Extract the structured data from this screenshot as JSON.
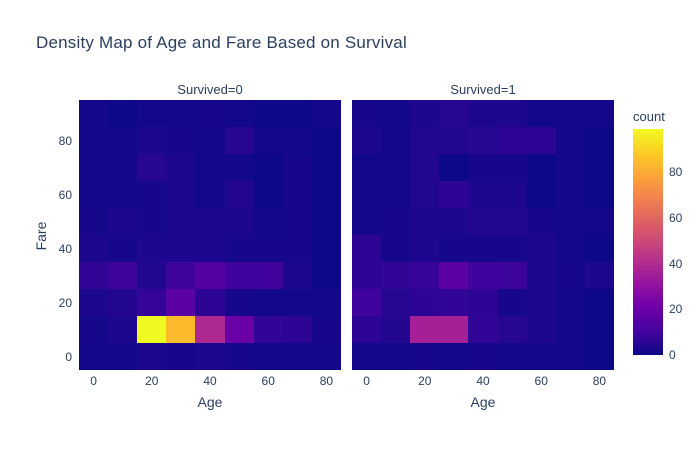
{
  "chart_data": {
    "type": "heatmap",
    "title": "Density Map of Age and Fare Based on Survival",
    "x": {
      "label": "Age",
      "bin_centers": [
        0,
        10,
        20,
        30,
        40,
        50,
        60,
        70,
        80
      ],
      "bin_size": 10,
      "range": [
        -5,
        85
      ],
      "ticks": [
        0,
        20,
        40,
        60,
        80
      ]
    },
    "y": {
      "label": "Fare",
      "bin_centers": [
        0,
        10,
        20,
        30,
        40,
        50,
        60,
        70,
        80,
        90
      ],
      "bin_size": 10,
      "range": [
        -5,
        95
      ],
      "ticks": [
        0,
        20,
        40,
        60,
        80
      ]
    },
    "legend_position": "right",
    "grid": "off",
    "colorbar": {
      "title": "count",
      "min": 0,
      "max": 99,
      "ticks": [
        0,
        20,
        40,
        60,
        80
      ],
      "colorscale_name": "plasma",
      "colorscale": [
        [
          0.0,
          "#0d0887"
        ],
        [
          0.1111,
          "#46039f"
        ],
        [
          0.2222,
          "#7201a8"
        ],
        [
          0.3333,
          "#9c179e"
        ],
        [
          0.4444,
          "#bd3786"
        ],
        [
          0.5556,
          "#d8576b"
        ],
        [
          0.6667,
          "#ed7953"
        ],
        [
          0.7778,
          "#fb9f3a"
        ],
        [
          0.8889,
          "#fdca26"
        ],
        [
          1.0,
          "#f0f921"
        ]
      ]
    },
    "facets": [
      {
        "title": "Survived=0",
        "counts_rows_fare_0_to_90": [
          [
            1,
            1,
            3,
            2,
            3,
            2,
            1,
            1,
            1
          ],
          [
            2,
            3,
            99,
            84,
            39,
            20,
            7,
            6,
            2
          ],
          [
            3,
            4,
            8,
            16,
            6,
            2,
            1,
            1,
            1
          ],
          [
            7,
            9,
            4,
            9,
            14,
            10,
            10,
            3,
            0
          ],
          [
            3,
            2,
            3,
            3,
            3,
            2,
            2,
            2,
            0
          ],
          [
            2,
            3,
            2,
            3,
            3,
            3,
            1,
            2,
            0
          ],
          [
            1,
            1,
            2,
            3,
            1,
            4,
            0,
            2,
            0
          ],
          [
            1,
            1,
            5,
            3,
            1,
            1,
            0,
            2,
            0
          ],
          [
            1,
            1,
            3,
            2,
            1,
            5,
            1,
            1,
            0
          ],
          [
            1,
            0,
            1,
            1,
            2,
            1,
            0,
            0,
            1
          ]
        ]
      },
      {
        "title": "Survived=1",
        "counts_rows_fare_0_to_90": [
          [
            1,
            1,
            2,
            1,
            2,
            1,
            1,
            1,
            0
          ],
          [
            6,
            4,
            36,
            36,
            7,
            5,
            3,
            1,
            0
          ],
          [
            10,
            5,
            6,
            7,
            6,
            2,
            3,
            1,
            0
          ],
          [
            6,
            7,
            8,
            16,
            10,
            9,
            3,
            2,
            3
          ],
          [
            6,
            2,
            3,
            2,
            2,
            2,
            3,
            1,
            0
          ],
          [
            1,
            2,
            3,
            3,
            4,
            4,
            2,
            1,
            1
          ],
          [
            1,
            1,
            4,
            6,
            3,
            3,
            0,
            1,
            0
          ],
          [
            1,
            1,
            4,
            0,
            2,
            2,
            0,
            1,
            0
          ],
          [
            3,
            1,
            4,
            4,
            5,
            6,
            6,
            1,
            0
          ],
          [
            2,
            1,
            3,
            5,
            3,
            3,
            1,
            1,
            1
          ]
        ]
      }
    ]
  }
}
